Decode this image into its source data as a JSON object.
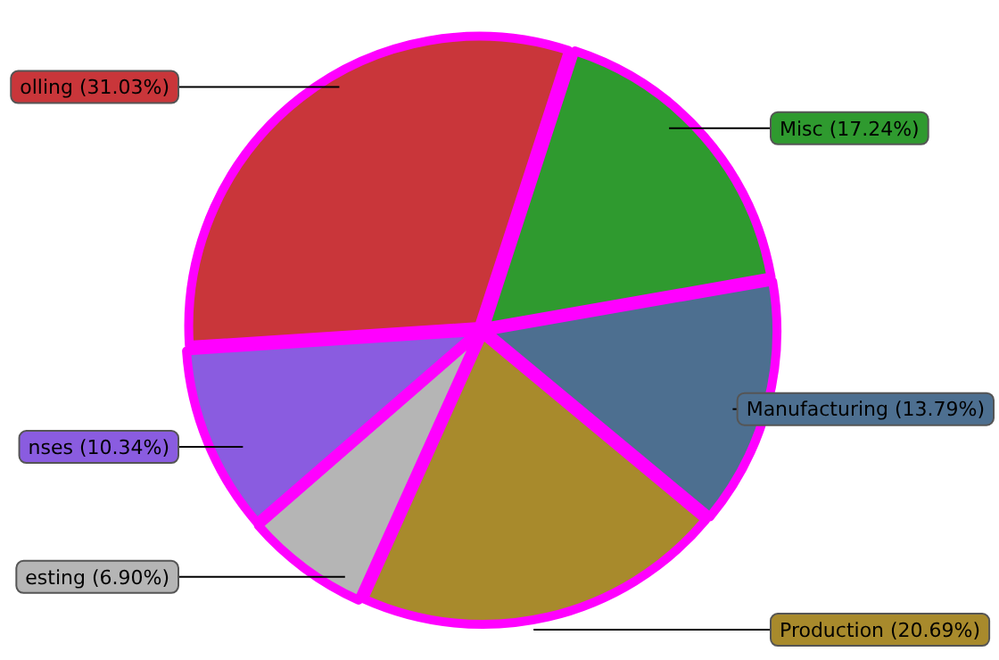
{
  "chart_data": {
    "type": "pie",
    "categories": [
      "Misc",
      "Manufacturing",
      "Production",
      "esting",
      "nses",
      "olling"
    ],
    "values": [
      17.24,
      13.79,
      20.69,
      6.9,
      10.34,
      31.03
    ],
    "value_labels": [
      "(17.24%)",
      "(13.79%)",
      "(20.69%)",
      "(6.90%)",
      "(10.34%)",
      "(31.03%)"
    ],
    "colors": [
      "#2f9a2f",
      "#4d6f90",
      "#a88a2c",
      "#b5b5b5",
      "#8a5ce0",
      "#c9363a"
    ]
  }
}
